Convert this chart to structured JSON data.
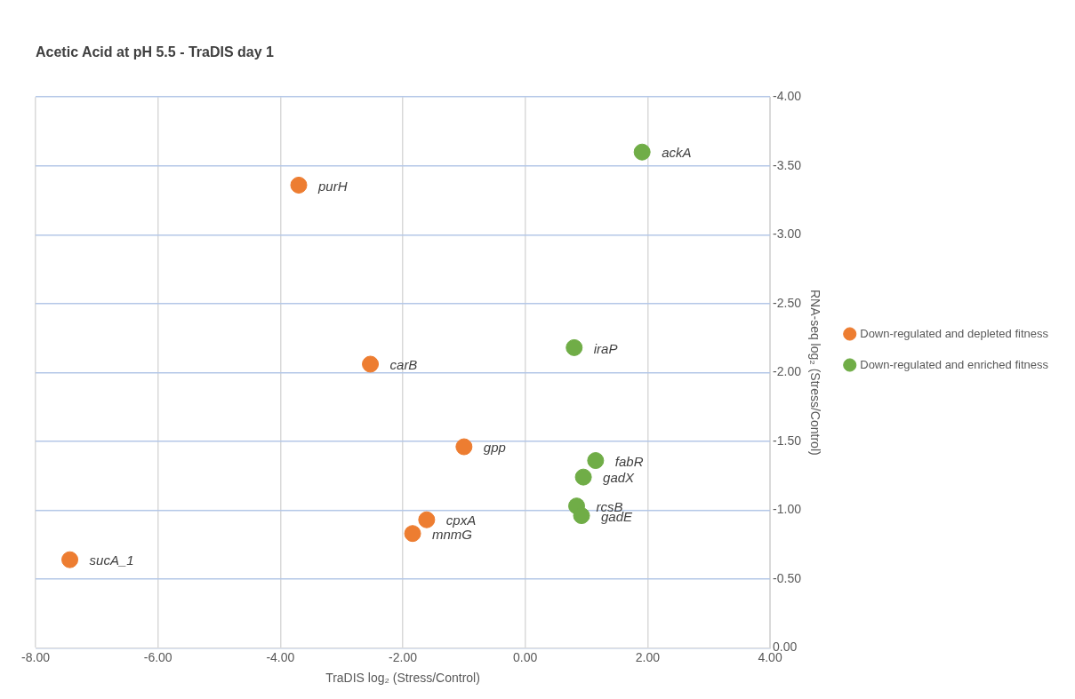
{
  "chart_data": {
    "type": "scatter",
    "title": "Acetic Acid at pH 5.5 - TraDIS day 1",
    "xlabel": "TraDIS log₂ (Stress/Control)",
    "ylabel": "RNA-seq log₂ (Stress/Control)",
    "series": [
      {
        "name": "Down-regulated and depleted fitness",
        "color": "#ed7d31",
        "x": [
          -3.7,
          -2.53,
          -1.0,
          -1.61,
          -1.84,
          -7.44
        ],
        "values": [
          -3.36,
          -2.06,
          -1.46,
          -0.93,
          -0.83,
          -0.64
        ]
      },
      {
        "name": "Down-regulated and enriched fitness",
        "color": "#70ad47",
        "x": [
          1.91,
          0.8,
          1.15,
          0.95,
          0.84,
          0.92
        ],
        "values": [
          -3.6,
          -2.18,
          -1.36,
          -1.24,
          -1.03,
          -0.96
        ]
      }
    ],
    "annotations": [
      {
        "text": "purH",
        "x": -3.7,
        "y": -3.36
      },
      {
        "text": "carB",
        "x": -2.53,
        "y": -2.06
      },
      {
        "text": "gpp",
        "x": -1.0,
        "y": -1.46
      },
      {
        "text": "cpxA",
        "x": -1.61,
        "y": -0.93
      },
      {
        "text": "mnmG",
        "x": -1.84,
        "y": -0.83
      },
      {
        "text": "sucA_1",
        "x": -7.44,
        "y": -0.64
      },
      {
        "text": "ackA",
        "x": 1.91,
        "y": -3.6
      },
      {
        "text": "iraP",
        "x": 0.8,
        "y": -2.18
      },
      {
        "text": "fabR",
        "x": 1.15,
        "y": -1.36
      },
      {
        "text": "gadX",
        "x": 0.95,
        "y": -1.24
      },
      {
        "text": "rcsB",
        "x": 0.84,
        "y": -1.03
      },
      {
        "text": "gadE",
        "x": 0.92,
        "y": -0.96
      }
    ],
    "xlim": [
      -8,
      4
    ],
    "xticks": [
      {
        "value": -8,
        "label": "-8.00"
      },
      {
        "value": -6,
        "label": "-6.00"
      },
      {
        "value": -4,
        "label": "-4.00"
      },
      {
        "value": -2,
        "label": "-2.00"
      },
      {
        "value": 0,
        "label": "0.00"
      },
      {
        "value": 2,
        "label": "2.00"
      },
      {
        "value": 4,
        "label": "4.00"
      }
    ],
    "ylim": [
      0,
      -4
    ],
    "yticks": [
      {
        "value": 0,
        "label": "0.00"
      },
      {
        "value": -0.5,
        "label": "-0.50"
      },
      {
        "value": -1,
        "label": "-1.00"
      },
      {
        "value": -1.5,
        "label": "-1.50"
      },
      {
        "value": -2,
        "label": "-2.00"
      },
      {
        "value": -2.5,
        "label": "-2.50"
      },
      {
        "value": -3,
        "label": "-3.00"
      },
      {
        "value": -3.5,
        "label": "-3.50"
      },
      {
        "value": -4,
        "label": "-4.00"
      }
    ],
    "grid": true,
    "legend": "right",
    "marker": "circle"
  }
}
